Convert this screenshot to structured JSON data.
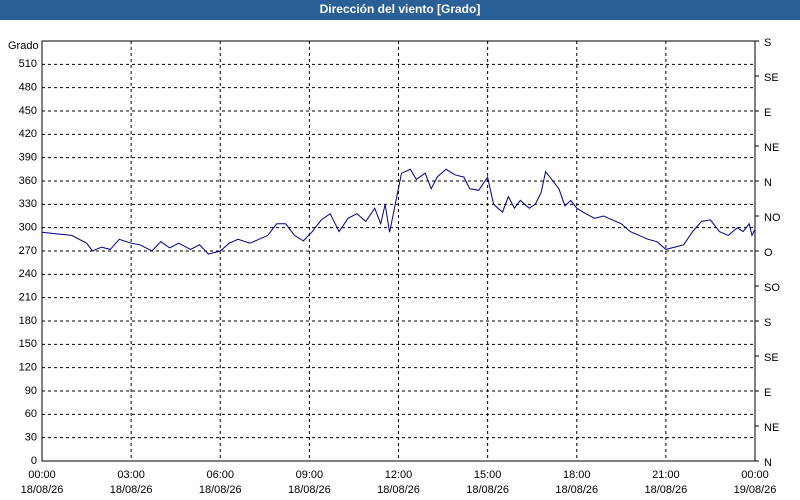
{
  "chart_data": {
    "type": "line",
    "title": "Dirección del viento [Grado]",
    "ylabel": "Grado",
    "x": [
      0,
      0.5,
      1,
      1.5,
      1.7,
      2,
      2.3,
      2.6,
      3,
      3.3,
      3.7,
      4,
      4.3,
      4.6,
      5,
      5.3,
      5.6,
      6,
      6.3,
      6.6,
      7,
      7.3,
      7.6,
      7.9,
      8.2,
      8.5,
      8.8,
      9.1,
      9.4,
      9.7,
      10,
      10.3,
      10.6,
      10.9,
      11.2,
      11.4,
      11.55,
      11.7,
      12.1,
      12.4,
      12.6,
      12.9,
      13.1,
      13.3,
      13.6,
      13.9,
      14.2,
      14.4,
      14.7,
      15,
      15.2,
      15.5,
      15.7,
      15.9,
      16.1,
      16.4,
      16.6,
      16.8,
      16.95,
      17.2,
      17.4,
      17.6,
      17.8,
      18,
      18.3,
      18.6,
      18.9,
      19.2,
      19.5,
      19.8,
      20.1,
      20.4,
      20.7,
      21,
      21.3,
      21.6,
      21.9,
      22.2,
      22.5,
      22.8,
      23.1,
      23.4,
      23.6,
      23.8,
      23.9,
      24
    ],
    "values": [
      294,
      292,
      290,
      280,
      270,
      275,
      272,
      285,
      280,
      278,
      270,
      282,
      274,
      280,
      272,
      278,
      266,
      270,
      280,
      285,
      280,
      285,
      290,
      305,
      305,
      290,
      283,
      295,
      310,
      318,
      295,
      312,
      318,
      308,
      325,
      305,
      330,
      294,
      370,
      375,
      362,
      370,
      350,
      365,
      375,
      368,
      365,
      350,
      348,
      365,
      330,
      320,
      340,
      325,
      335,
      325,
      330,
      345,
      372,
      360,
      350,
      328,
      335,
      325,
      318,
      312,
      315,
      310,
      305,
      295,
      290,
      285,
      282,
      272,
      275,
      278,
      295,
      308,
      310,
      295,
      290,
      300,
      295,
      305,
      290,
      298
    ],
    "color": "#00008b",
    "xlim": [
      0,
      24
    ],
    "xticks": [
      {
        "value": 0,
        "label": "00:00"
      },
      {
        "value": 3,
        "label": "03:00"
      },
      {
        "value": 6,
        "label": "06:00"
      },
      {
        "value": 9,
        "label": "09:00"
      },
      {
        "value": 12,
        "label": "12:00"
      },
      {
        "value": 15,
        "label": "15:00"
      },
      {
        "value": 18,
        "label": "18:00"
      },
      {
        "value": 21,
        "label": "21:00"
      },
      {
        "value": 24,
        "label": "00:00"
      }
    ],
    "xtick_dates": [
      "18/08/26",
      "18/08/26",
      "18/08/26",
      "18/08/26",
      "18/08/26",
      "18/08/26",
      "18/08/26",
      "18/08/26",
      "19/08/26"
    ],
    "ylim": [
      0,
      540
    ],
    "yticks": [
      0,
      30,
      60,
      90,
      120,
      150,
      180,
      210,
      240,
      270,
      300,
      330,
      360,
      390,
      420,
      450,
      480,
      510
    ],
    "y2lim": [
      0,
      540
    ],
    "y2ticks": [
      {
        "value": 0,
        "label": "N"
      },
      {
        "value": 45,
        "label": "NE"
      },
      {
        "value": 90,
        "label": "E"
      },
      {
        "value": 135,
        "label": "SE"
      },
      {
        "value": 180,
        "label": "S"
      },
      {
        "value": 225,
        "label": "SO"
      },
      {
        "value": 270,
        "label": "O"
      },
      {
        "value": 315,
        "label": "NO"
      },
      {
        "value": 360,
        "label": "N"
      },
      {
        "value": 405,
        "label": "NE"
      },
      {
        "value": 450,
        "label": "E"
      },
      {
        "value": 495,
        "label": "SE"
      },
      {
        "value": 540,
        "label": "S"
      }
    ],
    "grid": true
  }
}
